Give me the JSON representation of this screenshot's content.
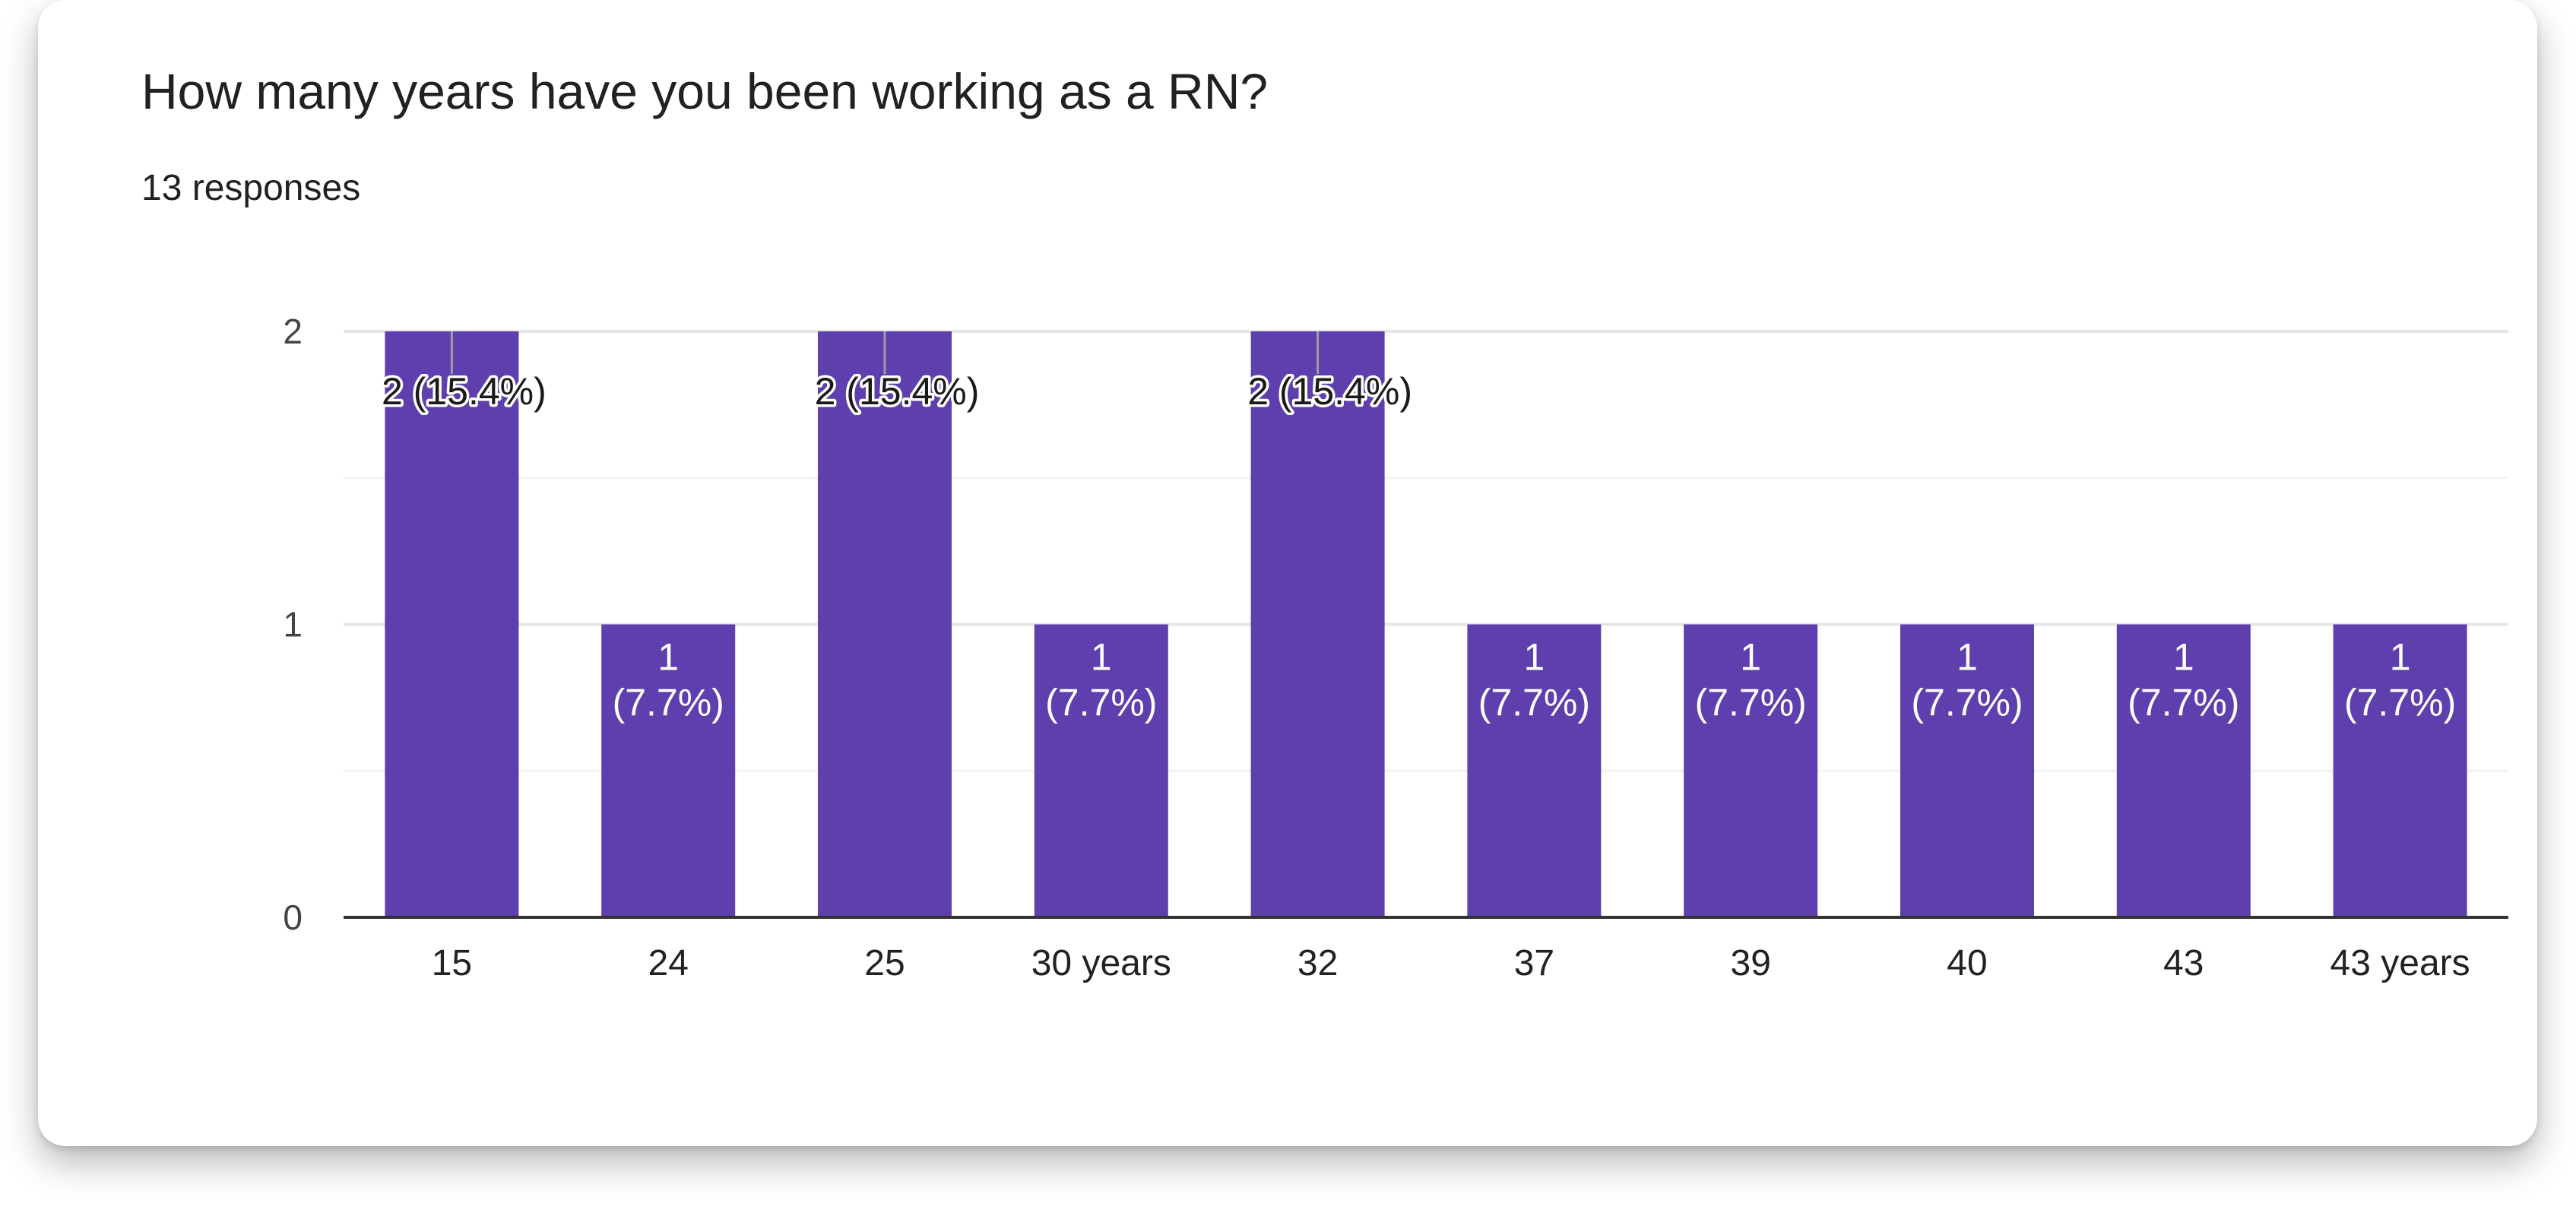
{
  "question": {
    "title": "How many years have you been working as a RN?",
    "responses": "13 responses"
  },
  "chart_data": {
    "type": "bar",
    "categories": [
      "15",
      "24",
      "25",
      "30 years",
      "32",
      "37",
      "39",
      "40",
      "43",
      "43 years"
    ],
    "values": [
      2,
      1,
      2,
      1,
      2,
      1,
      1,
      1,
      1,
      1
    ],
    "value_labels": [
      "2 (15.4%)",
      "1\n(7.7%)",
      "2 (15.4%)",
      "1\n(7.7%)",
      "2 (15.4%)",
      "1\n(7.7%)",
      "1\n(7.7%)",
      "1\n(7.7%)",
      "1\n(7.7%)",
      "1\n(7.7%)"
    ],
    "yticks": [
      0,
      1,
      2
    ],
    "ylim": [
      0,
      2
    ],
    "grid": true,
    "colors": {
      "bar": "#5e3fad",
      "grid": "#ebebeb",
      "axis": "#333333",
      "tick_text": "#444444"
    }
  }
}
